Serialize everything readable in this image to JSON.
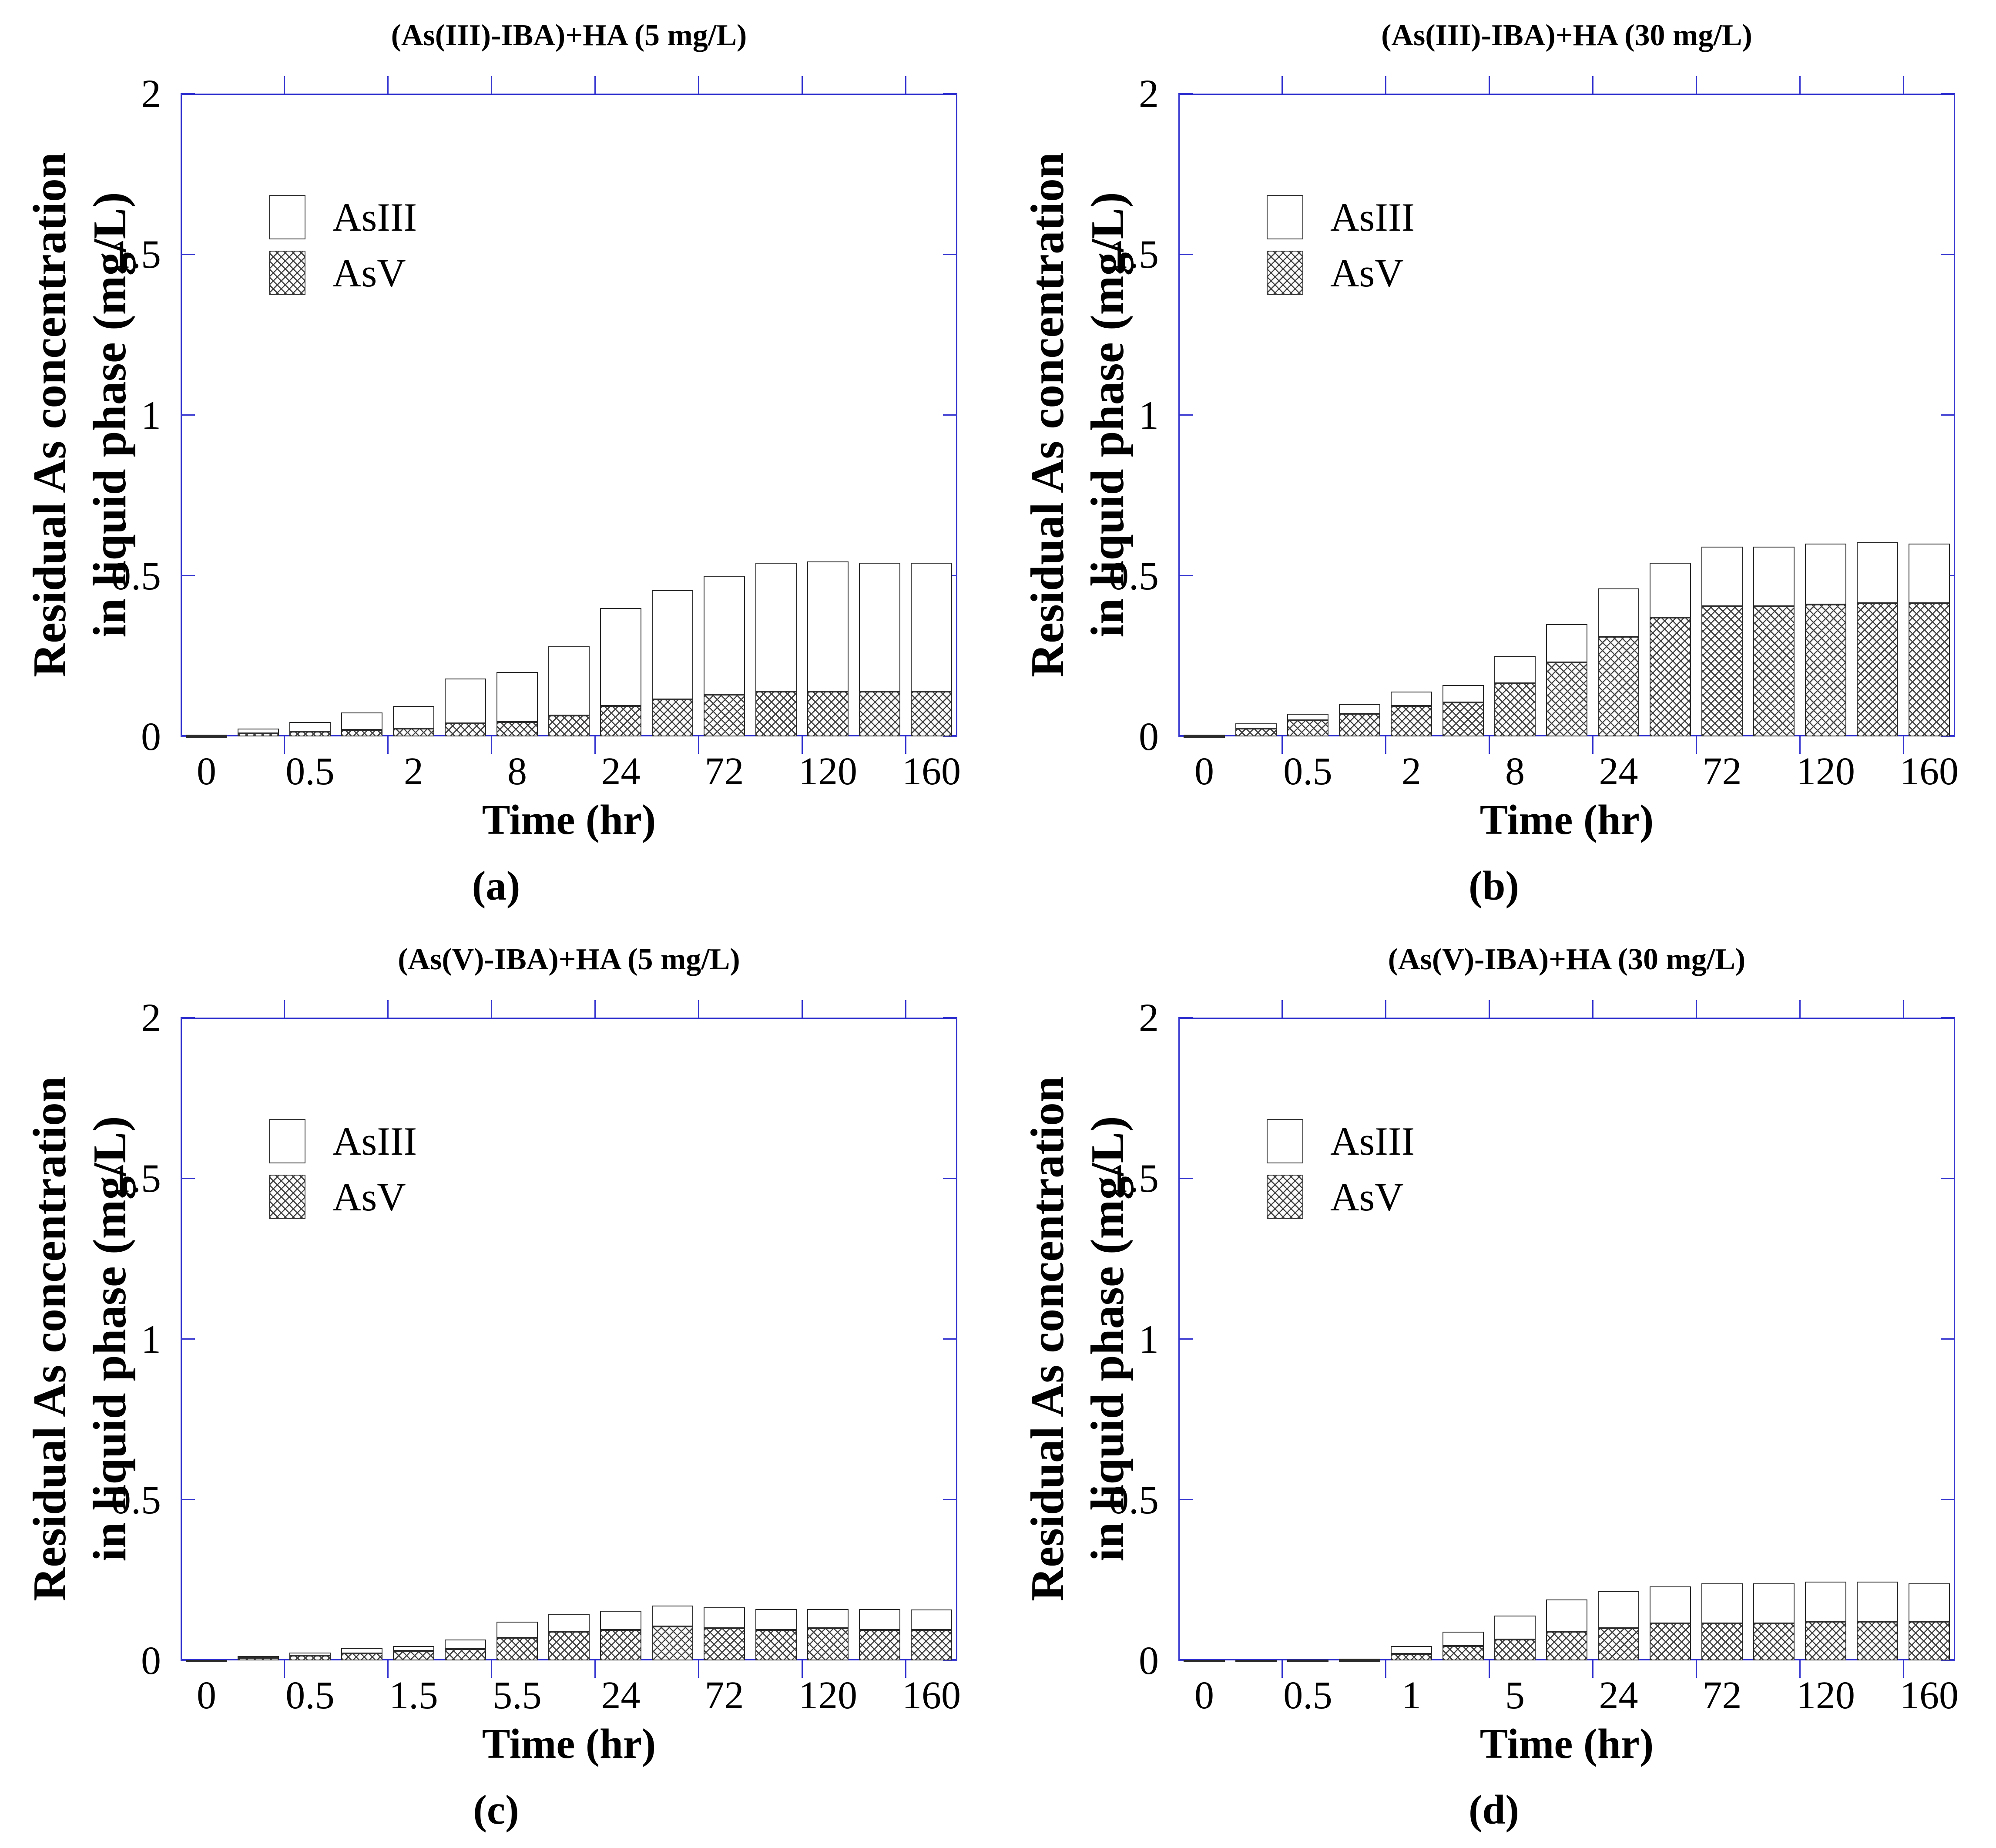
{
  "figure": {
    "axis_color": "#3535d0",
    "bar_outline_color": "#2b2b2b",
    "hatch_color": "#3f3f3f",
    "text_color": "#000000",
    "xlabel": "Time (hr)",
    "ylabel_line1": "Residual As concentration",
    "ylabel_line2": "in liquid phase (mg/L)",
    "legend": {
      "asiii": "AsIII",
      "asv": "AsV"
    }
  },
  "chart_data": [
    {
      "type": "bar",
      "stacked": true,
      "title": "(As(III)-IBA)+HA (5 mg/L)",
      "panel_label": "(a)",
      "xlabel": "Time (hr)",
      "ylabel": "Residual As concentration in liquid phase (mg/L)",
      "ylim": [
        0,
        2
      ],
      "yticks": [
        "0",
        "0.5",
        "1",
        "1.5",
        "2"
      ],
      "grid": false,
      "legend_position": "upper-left",
      "legend_entries": [
        "AsIII",
        "AsV"
      ],
      "categories": [
        "0",
        "",
        "0.5",
        "",
        "2",
        "",
        "8",
        "",
        "24",
        "",
        "72",
        "",
        "120",
        "",
        "160"
      ],
      "series": [
        {
          "name": "AsV",
          "values": [
            0.002,
            0.01,
            0.015,
            0.02,
            0.025,
            0.04,
            0.045,
            0.065,
            0.095,
            0.115,
            0.13,
            0.14,
            0.14,
            0.14,
            0.14
          ]
        },
        {
          "name": "AsIII",
          "values": [
            0.003,
            0.015,
            0.03,
            0.055,
            0.07,
            0.14,
            0.155,
            0.215,
            0.305,
            0.34,
            0.37,
            0.4,
            0.405,
            0.4,
            0.4
          ]
        }
      ]
    },
    {
      "type": "bar",
      "stacked": true,
      "title": "(As(III)-IBA)+HA (30 mg/L)",
      "panel_label": "(b)",
      "xlabel": "Time (hr)",
      "ylabel": "Residual As concentration in liquid phase (mg/L)",
      "ylim": [
        0,
        2
      ],
      "yticks": [
        "0",
        "0.5",
        "1",
        "1.5",
        "2"
      ],
      "grid": false,
      "legend_position": "upper-left",
      "legend_entries": [
        "AsIII",
        "AsV"
      ],
      "categories": [
        "0",
        "",
        "0.5",
        "",
        "2",
        "",
        "8",
        "",
        "24",
        "",
        "72",
        "",
        "120",
        "",
        "160"
      ],
      "series": [
        {
          "name": "AsV",
          "values": [
            0.002,
            0.025,
            0.05,
            0.07,
            0.095,
            0.105,
            0.165,
            0.23,
            0.31,
            0.37,
            0.405,
            0.405,
            0.41,
            0.415,
            0.415
          ]
        },
        {
          "name": "AsIII",
          "values": [
            0.003,
            0.015,
            0.02,
            0.03,
            0.045,
            0.055,
            0.085,
            0.12,
            0.15,
            0.17,
            0.185,
            0.185,
            0.19,
            0.19,
            0.185
          ]
        }
      ]
    },
    {
      "type": "bar",
      "stacked": true,
      "title": "(As(V)-IBA)+HA (5 mg/L)",
      "panel_label": "(c)",
      "xlabel": "Time (hr)",
      "ylabel": "Residual As concentration in liquid phase (mg/L)",
      "ylim": [
        0,
        2
      ],
      "yticks": [
        "0",
        "0.5",
        "1",
        "1.5",
        "2"
      ],
      "grid": false,
      "legend_position": "upper-left",
      "legend_entries": [
        "AsIII",
        "AsV"
      ],
      "categories": [
        "0",
        "",
        "0.5",
        "",
        "1.5",
        "",
        "5.5",
        "",
        "24",
        "",
        "72",
        "",
        "120",
        "",
        "160"
      ],
      "series": [
        {
          "name": "AsV",
          "values": [
            0.001,
            0.008,
            0.015,
            0.022,
            0.03,
            0.035,
            0.07,
            0.09,
            0.095,
            0.105,
            0.1,
            0.095,
            0.1,
            0.095,
            0.095
          ]
        },
        {
          "name": "AsIII",
          "values": [
            0.001,
            0.005,
            0.01,
            0.016,
            0.015,
            0.03,
            0.05,
            0.055,
            0.06,
            0.065,
            0.065,
            0.065,
            0.06,
            0.065,
            0.063
          ]
        }
      ]
    },
    {
      "type": "bar",
      "stacked": true,
      "title": "(As(V)-IBA)+HA (30 mg/L)",
      "panel_label": "(d)",
      "xlabel": "Time (hr)",
      "ylabel": "Residual As concentration in liquid phase (mg/L)",
      "ylim": [
        0,
        2
      ],
      "yticks": [
        "0",
        "0.5",
        "1",
        "1.5",
        "2"
      ],
      "grid": false,
      "legend_position": "upper-left",
      "legend_entries": [
        "AsIII",
        "AsV"
      ],
      "categories": [
        "0",
        "",
        "0.5",
        "",
        "1",
        "",
        "5",
        "",
        "24",
        "",
        "72",
        "",
        "120",
        "",
        "160"
      ],
      "series": [
        {
          "name": "AsV",
          "values": [
            0.001,
            0.001,
            0.001,
            0.002,
            0.02,
            0.045,
            0.065,
            0.09,
            0.1,
            0.115,
            0.115,
            0.115,
            0.12,
            0.12,
            0.12
          ]
        },
        {
          "name": "AsIII",
          "values": [
            0.001,
            0.001,
            0.002,
            0.003,
            0.025,
            0.045,
            0.075,
            0.1,
            0.115,
            0.115,
            0.125,
            0.125,
            0.125,
            0.125,
            0.12
          ]
        }
      ]
    }
  ]
}
